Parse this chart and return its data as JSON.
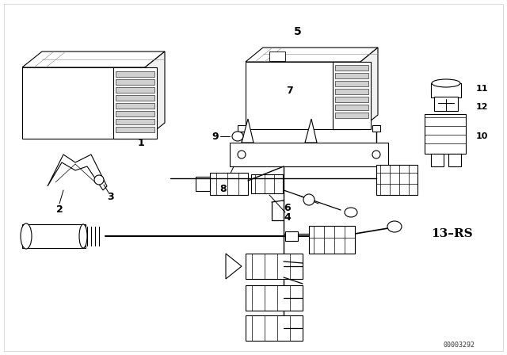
{
  "background_color": "#ffffff",
  "line_color": "#000000",
  "fig_width": 6.4,
  "fig_height": 4.48,
  "dpi": 100,
  "label_13rs": "13–RS",
  "watermark": "00003292",
  "border_color": "#cccccc"
}
